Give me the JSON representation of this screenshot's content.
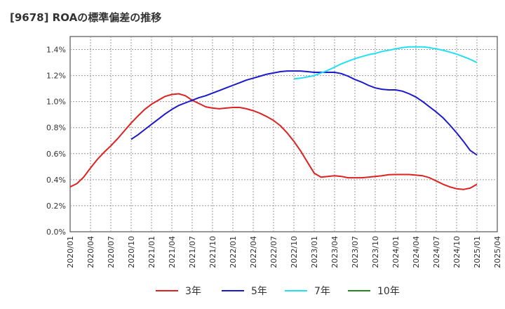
{
  "chart_data": {
    "type": "line",
    "title": "[9678]  ROAの標準偏差の推移",
    "xlabel": "",
    "ylabel": "",
    "ylim": [
      0,
      1.5
    ],
    "y_ticks": [
      "0.0%",
      "0.2%",
      "0.4%",
      "0.6%",
      "0.8%",
      "1.0%",
      "1.2%",
      "1.4%"
    ],
    "x_ticks": [
      "2020/01",
      "2020/04",
      "2020/07",
      "2020/10",
      "2021/01",
      "2021/04",
      "2021/07",
      "2021/10",
      "2022/01",
      "2022/04",
      "2022/07",
      "2022/10",
      "2023/01",
      "2023/04",
      "2023/07",
      "2023/10",
      "2024/01",
      "2024/04",
      "2024/07",
      "2024/10",
      "2025/01",
      "2025/04"
    ],
    "grid": true,
    "legend_position": "bottom",
    "series": [
      {
        "name": "3年",
        "color": "#dd2222",
        "points": [
          [
            "2020/01",
            0.345
          ],
          [
            "2020/02",
            0.37
          ],
          [
            "2020/03",
            0.42
          ],
          [
            "2020/04",
            0.49
          ],
          [
            "2020/05",
            0.555
          ],
          [
            "2020/06",
            0.61
          ],
          [
            "2020/07",
            0.66
          ],
          [
            "2020/08",
            0.715
          ],
          [
            "2020/09",
            0.775
          ],
          [
            "2020/10",
            0.835
          ],
          [
            "2020/11",
            0.89
          ],
          [
            "2020/12",
            0.94
          ],
          [
            "2021/01",
            0.98
          ],
          [
            "2021/02",
            1.01
          ],
          [
            "2021/03",
            1.04
          ],
          [
            "2021/04",
            1.055
          ],
          [
            "2021/05",
            1.06
          ],
          [
            "2021/06",
            1.045
          ],
          [
            "2021/07",
            1.01
          ],
          [
            "2021/08",
            0.985
          ],
          [
            "2021/09",
            0.96
          ],
          [
            "2021/10",
            0.95
          ],
          [
            "2021/11",
            0.945
          ],
          [
            "2021/12",
            0.95
          ],
          [
            "2022/01",
            0.955
          ],
          [
            "2022/02",
            0.955
          ],
          [
            "2022/03",
            0.945
          ],
          [
            "2022/04",
            0.93
          ],
          [
            "2022/05",
            0.91
          ],
          [
            "2022/06",
            0.885
          ],
          [
            "2022/07",
            0.855
          ],
          [
            "2022/08",
            0.815
          ],
          [
            "2022/09",
            0.76
          ],
          [
            "2022/10",
            0.695
          ],
          [
            "2022/11",
            0.62
          ],
          [
            "2022/12",
            0.535
          ],
          [
            "2023/01",
            0.45
          ],
          [
            "2023/02",
            0.42
          ],
          [
            "2023/03",
            0.425
          ],
          [
            "2023/04",
            0.43
          ],
          [
            "2023/05",
            0.425
          ],
          [
            "2023/06",
            0.415
          ],
          [
            "2023/07",
            0.415
          ],
          [
            "2023/08",
            0.415
          ],
          [
            "2023/09",
            0.42
          ],
          [
            "2023/10",
            0.425
          ],
          [
            "2023/11",
            0.43
          ],
          [
            "2023/12",
            0.438
          ],
          [
            "2024/01",
            0.44
          ],
          [
            "2024/02",
            0.44
          ],
          [
            "2024/03",
            0.44
          ],
          [
            "2024/04",
            0.435
          ],
          [
            "2024/05",
            0.43
          ],
          [
            "2024/06",
            0.415
          ],
          [
            "2024/07",
            0.39
          ],
          [
            "2024/08",
            0.365
          ],
          [
            "2024/09",
            0.345
          ],
          [
            "2024/10",
            0.33
          ],
          [
            "2024/11",
            0.325
          ],
          [
            "2024/12",
            0.335
          ],
          [
            "2025/01",
            0.365
          ]
        ]
      },
      {
        "name": "5年",
        "color": "#1a1acc",
        "points": [
          [
            "2020/10",
            0.71
          ],
          [
            "2020/11",
            0.745
          ],
          [
            "2020/12",
            0.785
          ],
          [
            "2021/01",
            0.825
          ],
          [
            "2021/02",
            0.865
          ],
          [
            "2021/03",
            0.905
          ],
          [
            "2021/04",
            0.94
          ],
          [
            "2021/05",
            0.97
          ],
          [
            "2021/06",
            0.99
          ],
          [
            "2021/07",
            1.01
          ],
          [
            "2021/08",
            1.03
          ],
          [
            "2021/09",
            1.045
          ],
          [
            "2021/10",
            1.065
          ],
          [
            "2021/11",
            1.085
          ],
          [
            "2021/12",
            1.105
          ],
          [
            "2022/01",
            1.125
          ],
          [
            "2022/02",
            1.145
          ],
          [
            "2022/03",
            1.165
          ],
          [
            "2022/04",
            1.18
          ],
          [
            "2022/05",
            1.195
          ],
          [
            "2022/06",
            1.21
          ],
          [
            "2022/07",
            1.22
          ],
          [
            "2022/08",
            1.23
          ],
          [
            "2022/09",
            1.235
          ],
          [
            "2022/10",
            1.235
          ],
          [
            "2022/11",
            1.235
          ],
          [
            "2022/12",
            1.23
          ],
          [
            "2023/01",
            1.225
          ],
          [
            "2023/02",
            1.225
          ],
          [
            "2023/03",
            1.225
          ],
          [
            "2023/04",
            1.225
          ],
          [
            "2023/05",
            1.215
          ],
          [
            "2023/06",
            1.195
          ],
          [
            "2023/07",
            1.17
          ],
          [
            "2023/08",
            1.15
          ],
          [
            "2023/09",
            1.125
          ],
          [
            "2023/10",
            1.105
          ],
          [
            "2023/11",
            1.095
          ],
          [
            "2023/12",
            1.09
          ],
          [
            "2024/01",
            1.09
          ],
          [
            "2024/02",
            1.08
          ],
          [
            "2024/03",
            1.06
          ],
          [
            "2024/04",
            1.035
          ],
          [
            "2024/05",
            1.0
          ],
          [
            "2024/06",
            0.96
          ],
          [
            "2024/07",
            0.92
          ],
          [
            "2024/08",
            0.875
          ],
          [
            "2024/09",
            0.82
          ],
          [
            "2024/10",
            0.76
          ],
          [
            "2024/11",
            0.695
          ],
          [
            "2024/12",
            0.625
          ],
          [
            "2025/01",
            0.59
          ]
        ]
      },
      {
        "name": "7年",
        "color": "#22e0f0",
        "points": [
          [
            "2022/10",
            1.175
          ],
          [
            "2022/11",
            1.18
          ],
          [
            "2022/12",
            1.19
          ],
          [
            "2023/01",
            1.2
          ],
          [
            "2023/02",
            1.22
          ],
          [
            "2023/03",
            1.24
          ],
          [
            "2023/04",
            1.265
          ],
          [
            "2023/05",
            1.29
          ],
          [
            "2023/06",
            1.31
          ],
          [
            "2023/07",
            1.33
          ],
          [
            "2023/08",
            1.345
          ],
          [
            "2023/09",
            1.36
          ],
          [
            "2023/10",
            1.37
          ],
          [
            "2023/11",
            1.385
          ],
          [
            "2023/12",
            1.395
          ],
          [
            "2024/01",
            1.405
          ],
          [
            "2024/02",
            1.415
          ],
          [
            "2024/03",
            1.42
          ],
          [
            "2024/04",
            1.42
          ],
          [
            "2024/05",
            1.42
          ],
          [
            "2024/06",
            1.415
          ],
          [
            "2024/07",
            1.405
          ],
          [
            "2024/08",
            1.395
          ],
          [
            "2024/09",
            1.38
          ],
          [
            "2024/10",
            1.365
          ],
          [
            "2024/11",
            1.345
          ],
          [
            "2024/12",
            1.325
          ],
          [
            "2025/01",
            1.3
          ]
        ]
      },
      {
        "name": "10年",
        "color": "#228822",
        "points": []
      }
    ]
  }
}
